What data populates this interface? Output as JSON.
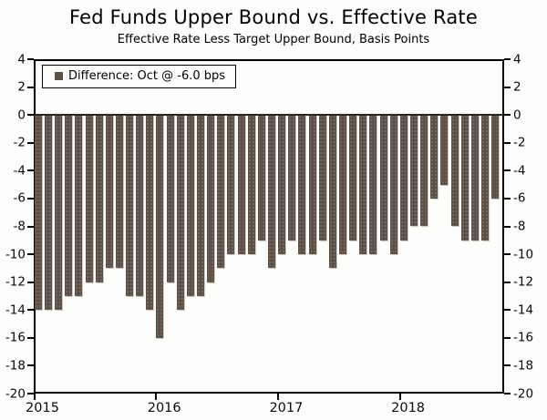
{
  "header": {
    "title": "Fed Funds Upper Bound vs. Effective Rate",
    "subtitle": "Effective Rate Less Target Upper Bound, Basis Points"
  },
  "legend": {
    "label": "Difference: Oct @ -6.0 bps",
    "swatch_color": "#5b5148"
  },
  "colors": {
    "bar": "#5b5148",
    "axis": "#000000",
    "zero_line": "#2b251d",
    "background": "#fdfdfc"
  },
  "chart_data": {
    "type": "bar",
    "title": "Fed Funds Upper Bound vs. Effective Rate",
    "subtitle": "Effective Rate Less Target Upper Bound, Basis Points",
    "ylabel": "Basis Points",
    "unit": "bps",
    "ylim": [
      -20,
      4
    ],
    "yticks": [
      4,
      2,
      0,
      -2,
      -4,
      -6,
      -8,
      -10,
      -12,
      -14,
      -16,
      -18,
      -20
    ],
    "year_ticks": [
      "2015",
      "2016",
      "2017",
      "2018"
    ],
    "grid": false,
    "legend_position": "top-left",
    "legend_entry": "Difference: Oct @ -6.0 bps",
    "categories": [
      "Jan 2015",
      "Feb 2015",
      "Mar 2015",
      "Apr 2015",
      "May 2015",
      "Jun 2015",
      "Jul 2015",
      "Aug 2015",
      "Sep 2015",
      "Oct 2015",
      "Nov 2015",
      "Dec 2015",
      "Jan 2016",
      "Feb 2016",
      "Mar 2016",
      "Apr 2016",
      "May 2016",
      "Jun 2016",
      "Jul 2016",
      "Aug 2016",
      "Sep 2016",
      "Oct 2016",
      "Nov 2016",
      "Dec 2016",
      "Jan 2017",
      "Feb 2017",
      "Mar 2017",
      "Apr 2017",
      "May 2017",
      "Jun 2017",
      "Jul 2017",
      "Aug 2017",
      "Sep 2017",
      "Oct 2017",
      "Nov 2017",
      "Dec 2017",
      "Jan 2018",
      "Feb 2018",
      "Mar 2018",
      "Apr 2018",
      "May 2018",
      "Jun 2018",
      "Jul 2018",
      "Aug 2018",
      "Sep 2018",
      "Oct 2018"
    ],
    "values": [
      -14,
      -14,
      -14,
      -13,
      -13,
      -12,
      -12,
      -11,
      -11,
      -13,
      -13,
      -14,
      -16,
      -12,
      -14,
      -13,
      -13,
      -12,
      -11,
      -10,
      -10,
      -10,
      -9,
      -11,
      -10,
      -9,
      -10,
      -10,
      -9,
      -11,
      -10,
      -9,
      -10,
      -10,
      -9,
      -10,
      -9,
      -8,
      -8,
      -6,
      -5,
      -8,
      -9,
      -9,
      -9,
      -6
    ]
  }
}
